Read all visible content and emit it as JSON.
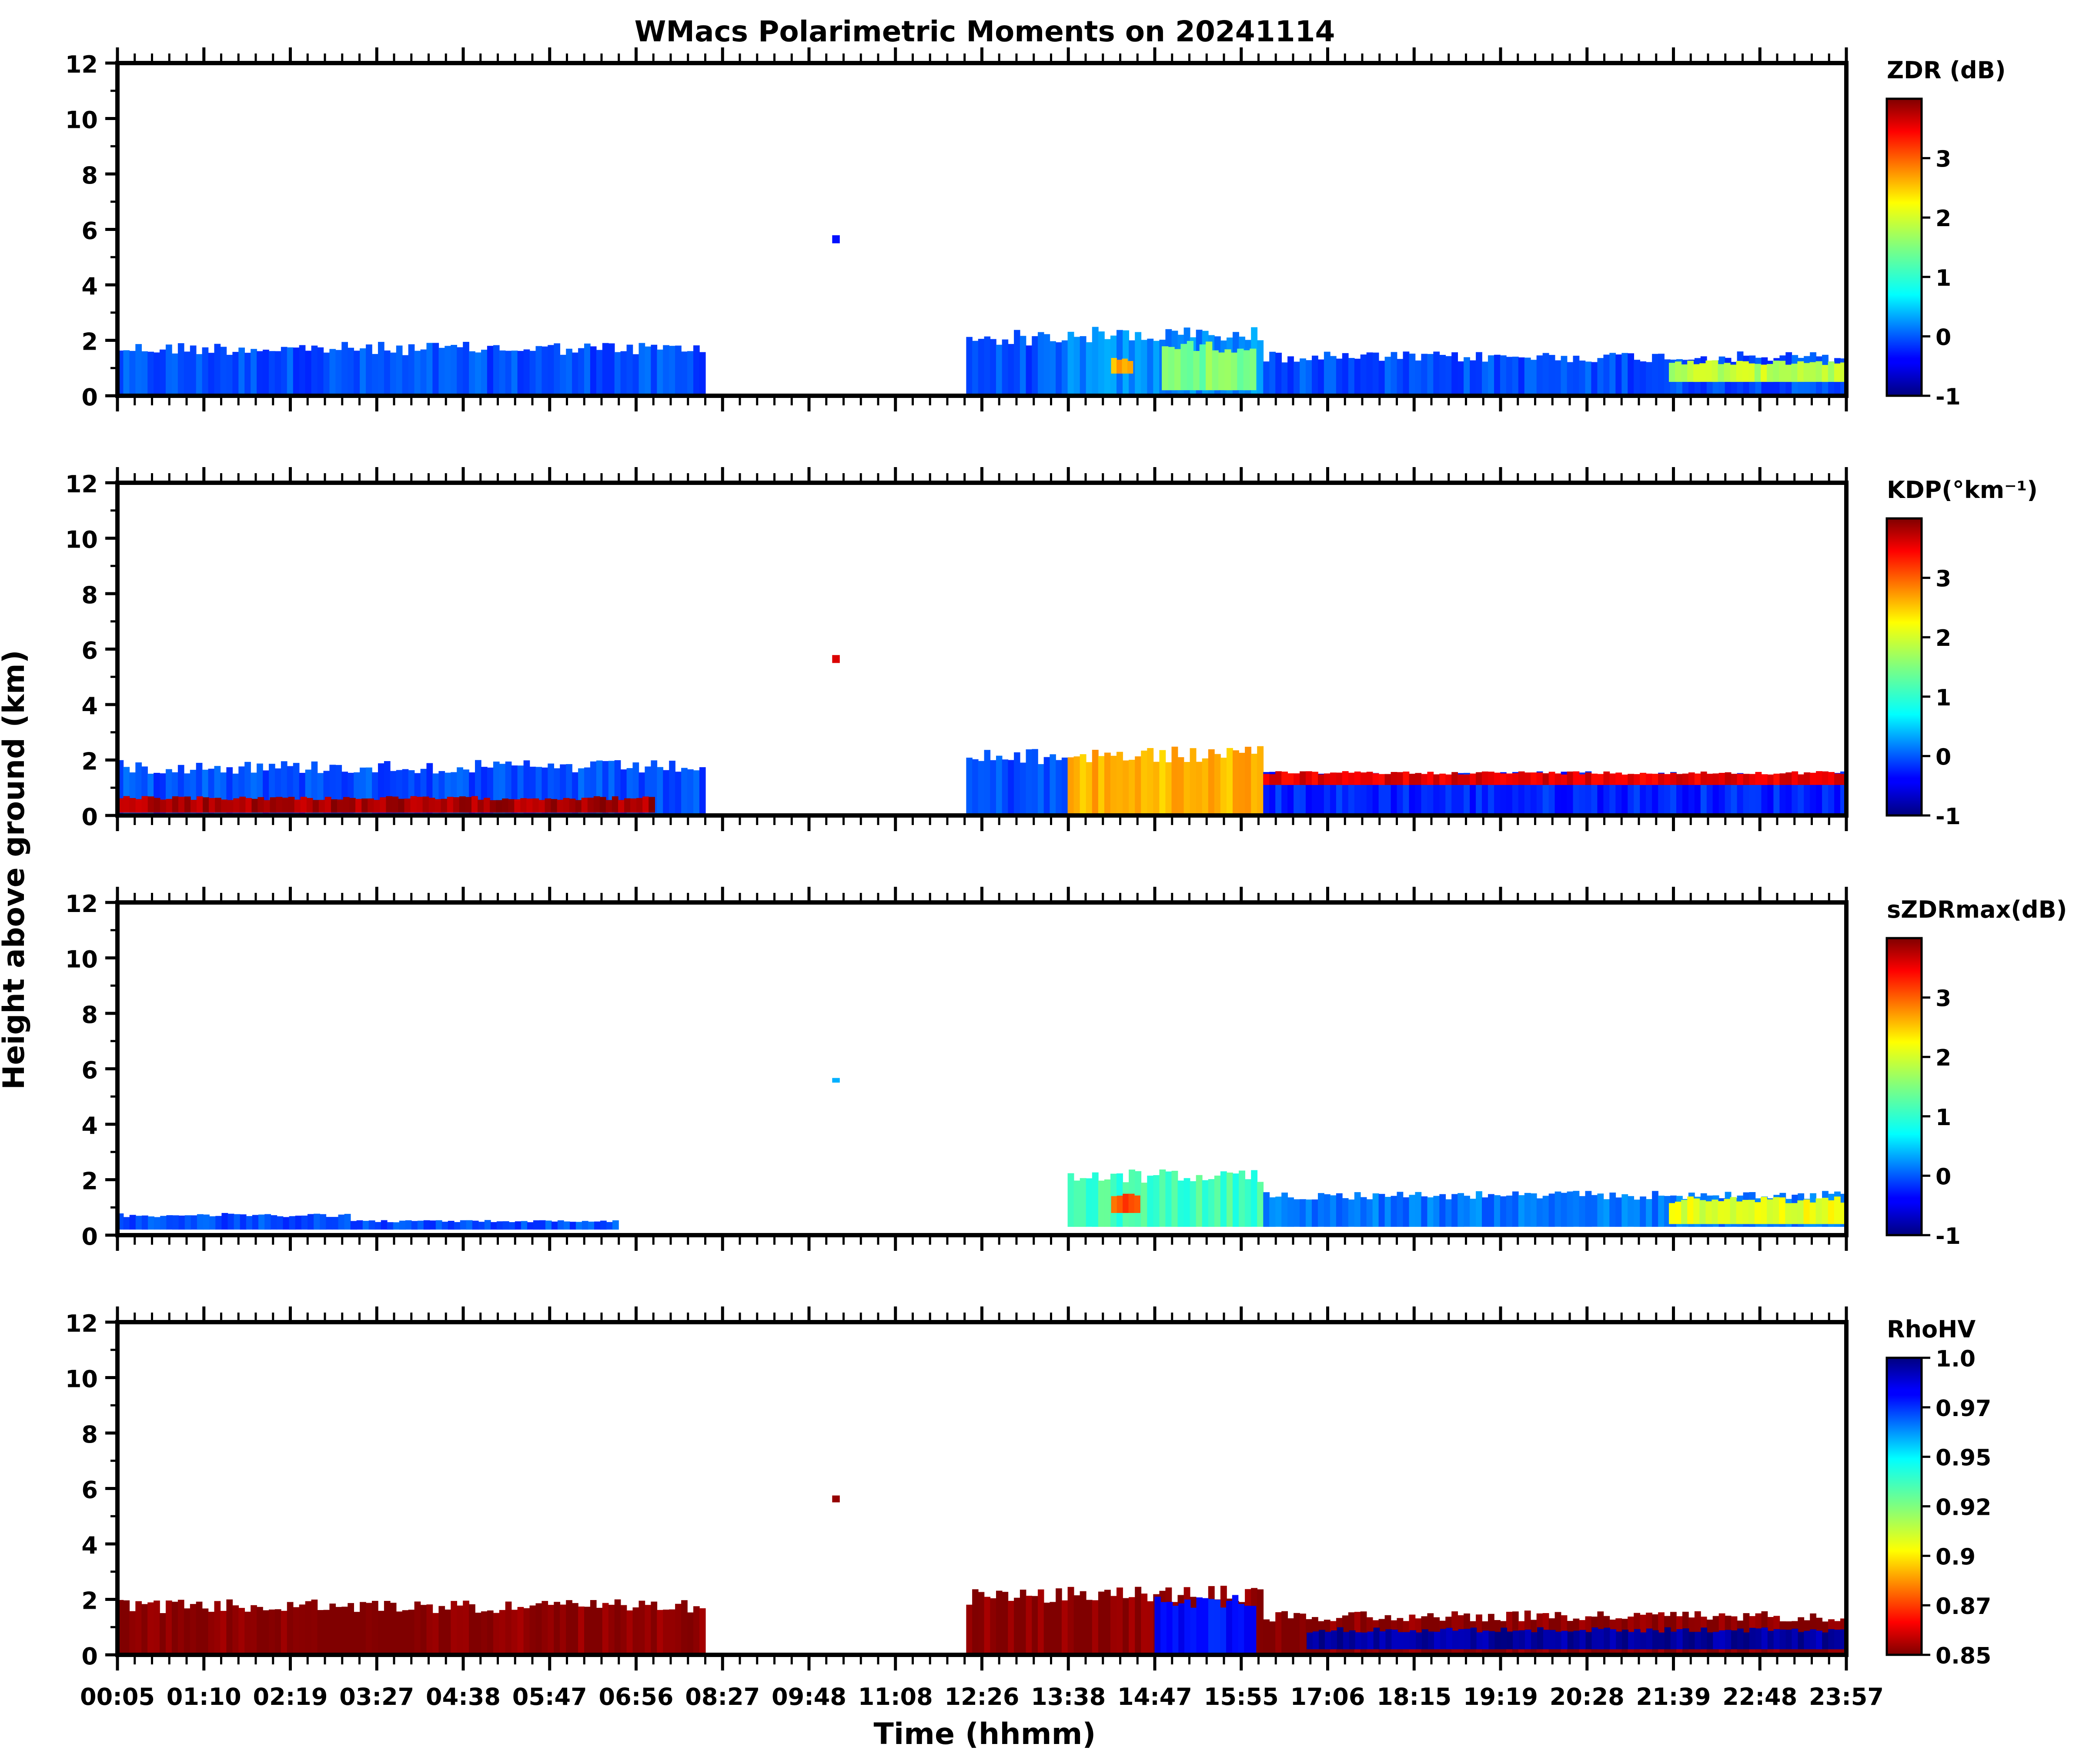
{
  "figure": {
    "title": "WMacs Polarimetric Moments on 20241114",
    "xlabel": "Time (hhmm)",
    "ylabel": "Height above ground (km)"
  },
  "chart_data": [
    {
      "type": "heatmap",
      "panel": 1,
      "colorbar_label": "ZDR (dB)",
      "colorbar_ticks": [
        "-1",
        "0",
        "1",
        "2",
        "3"
      ],
      "colorbar_range": [
        -1,
        4
      ],
      "colormap": "jet",
      "ylim": [
        0,
        12
      ],
      "yticks": [
        "0",
        "2",
        "4",
        "6",
        "8",
        "10",
        "12"
      ],
      "xlim_hours": [
        0.0833,
        23.95
      ],
      "echo_regions": [
        {
          "t0": 0.08,
          "t1": 8.2,
          "h0": 0.0,
          "h1": 1.95,
          "value": 0.0
        },
        {
          "t0": 9.95,
          "t1": 10.05,
          "h0": 5.5,
          "h1": 5.8,
          "value": -0.3
        },
        {
          "t0": 11.8,
          "t1": 13.2,
          "h0": 0.0,
          "h1": 2.4,
          "value": 0.0
        },
        {
          "t0": 13.2,
          "t1": 15.9,
          "h0": 0.0,
          "h1": 2.5,
          "value": 0.3
        },
        {
          "t0": 13.8,
          "t1": 14.1,
          "h0": 0.8,
          "h1": 1.4,
          "value": 2.5
        },
        {
          "t0": 14.5,
          "t1": 15.8,
          "h0": 0.2,
          "h1": 2.0,
          "value": 1.5
        },
        {
          "t0": 15.9,
          "t1": 23.95,
          "h0": 0.0,
          "h1": 1.6,
          "value": 0.0
        },
        {
          "t0": 21.5,
          "t1": 23.95,
          "h0": 0.5,
          "h1": 1.3,
          "value": 1.8
        }
      ]
    },
    {
      "type": "heatmap",
      "panel": 2,
      "colorbar_label": "KDP(°km⁻¹)",
      "colorbar_ticks": [
        "-1",
        "0",
        "1",
        "2",
        "3"
      ],
      "colorbar_range": [
        -1,
        4
      ],
      "colormap": "jet",
      "ylim": [
        0,
        12
      ],
      "yticks": [
        "0",
        "2",
        "4",
        "6",
        "8",
        "10",
        "12"
      ],
      "xlim_hours": [
        0.0833,
        23.95
      ],
      "echo_regions": [
        {
          "t0": 0.08,
          "t1": 8.2,
          "h0": 0.0,
          "h1": 2.0,
          "value": 0.0
        },
        {
          "t0": 0.08,
          "t1": 7.5,
          "h0": 0.1,
          "h1": 0.7,
          "value": 3.8
        },
        {
          "t0": 9.95,
          "t1": 10.05,
          "h0": 5.5,
          "h1": 5.8,
          "value": 3.5
        },
        {
          "t0": 11.8,
          "t1": 13.2,
          "h0": 0.0,
          "h1": 2.4,
          "value": 0.0
        },
        {
          "t0": 13.2,
          "t1": 15.9,
          "h0": 0.0,
          "h1": 2.5,
          "value": 2.5
        },
        {
          "t0": 15.9,
          "t1": 23.95,
          "h0": 0.0,
          "h1": 1.6,
          "value": -0.2
        },
        {
          "t0": 15.9,
          "t1": 23.95,
          "h0": 1.1,
          "h1": 1.6,
          "value": 3.5
        }
      ]
    },
    {
      "type": "heatmap",
      "panel": 3,
      "colorbar_label": "sZDRmax(dB)",
      "colorbar_ticks": [
        "-1",
        "0",
        "1",
        "2",
        "3"
      ],
      "colorbar_range": [
        -1,
        4
      ],
      "colormap": "jet",
      "ylim": [
        0,
        12
      ],
      "yticks": [
        "0",
        "2",
        "4",
        "6",
        "8",
        "10",
        "12"
      ],
      "xlim_hours": [
        0.0833,
        23.95
      ],
      "echo_regions": [
        {
          "t0": 0.08,
          "t1": 3.3,
          "h0": 0.2,
          "h1": 0.8,
          "value": 0.0
        },
        {
          "t0": 3.3,
          "t1": 7.0,
          "h0": 0.2,
          "h1": 0.55,
          "value": 0.0
        },
        {
          "t0": 9.95,
          "t1": 10.05,
          "h0": 5.5,
          "h1": 5.7,
          "value": 0.5
        },
        {
          "t0": 13.2,
          "t1": 15.9,
          "h0": 0.3,
          "h1": 2.4,
          "value": 1.2
        },
        {
          "t0": 13.8,
          "t1": 14.2,
          "h0": 0.8,
          "h1": 1.5,
          "value": 3.0
        },
        {
          "t0": 15.9,
          "t1": 23.95,
          "h0": 0.3,
          "h1": 1.6,
          "value": 0.2
        },
        {
          "t0": 21.5,
          "t1": 23.95,
          "h0": 0.4,
          "h1": 1.4,
          "value": 2.0
        }
      ]
    },
    {
      "type": "heatmap",
      "panel": 4,
      "colorbar_label": "RhoHV",
      "colorbar_ticks": [
        "0.85",
        "0.87",
        "0.9",
        "0.92",
        "0.95",
        "0.97",
        "1.0"
      ],
      "colorbar_range": [
        0.85,
        1.0
      ],
      "colormap": "jet_r",
      "ylim": [
        0,
        12
      ],
      "yticks": [
        "0",
        "2",
        "4",
        "6",
        "8",
        "10",
        "12"
      ],
      "xlim_hours": [
        0.0833,
        23.95
      ],
      "echo_regions": [
        {
          "t0": 0.08,
          "t1": 8.2,
          "h0": 0.0,
          "h1": 2.0,
          "value": 0.85
        },
        {
          "t0": 9.95,
          "t1": 10.05,
          "h0": 5.5,
          "h1": 5.8,
          "value": 0.85
        },
        {
          "t0": 11.8,
          "t1": 13.2,
          "h0": 0.0,
          "h1": 2.4,
          "value": 0.85
        },
        {
          "t0": 13.2,
          "t1": 15.9,
          "h0": 0.0,
          "h1": 2.5,
          "value": 0.85
        },
        {
          "t0": 14.4,
          "t1": 15.8,
          "h0": 0.0,
          "h1": 2.2,
          "value": 0.98
        },
        {
          "t0": 15.9,
          "t1": 23.95,
          "h0": 0.0,
          "h1": 1.6,
          "value": 0.85
        },
        {
          "t0": 16.5,
          "t1": 23.95,
          "h0": 0.2,
          "h1": 1.0,
          "value": 0.995
        }
      ]
    }
  ],
  "xticks": [
    "00:05",
    "01:10",
    "02:19",
    "03:27",
    "04:38",
    "05:47",
    "06:56",
    "08:27",
    "09:48",
    "11:08",
    "12:26",
    "13:38",
    "14:47",
    "15:55",
    "17:06",
    "18:15",
    "19:19",
    "20:28",
    "21:39",
    "22:48",
    "23:57"
  ]
}
